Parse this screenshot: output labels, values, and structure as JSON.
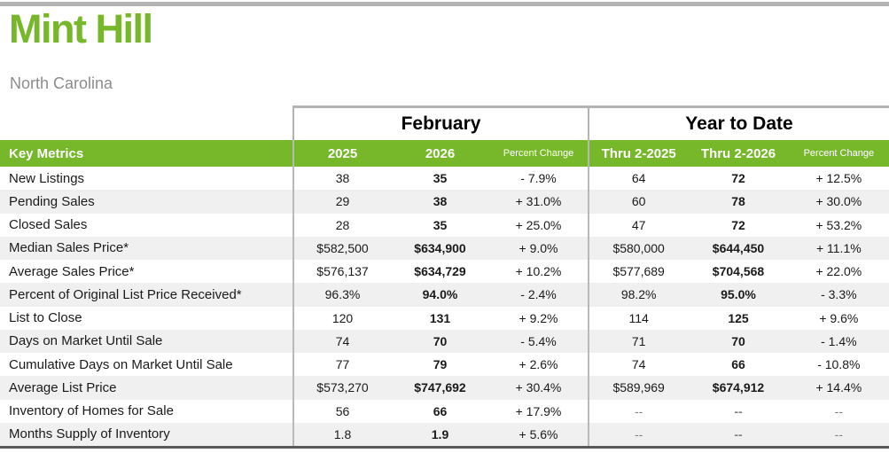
{
  "page": {
    "title": "Mint Hill",
    "subtitle": "North Carolina"
  },
  "table": {
    "key_metrics_label": "Key Metrics",
    "groups": [
      {
        "label": "February",
        "columns": [
          "2025",
          "2026",
          "Percent Change"
        ]
      },
      {
        "label": "Year to Date",
        "columns": [
          "Thru 2-2025",
          "Thru 2-2026",
          "Percent Change"
        ]
      }
    ],
    "rows": [
      {
        "metric": "New Listings",
        "feb_2025": "38",
        "feb_2026": "35",
        "feb_change": "- 7.9%",
        "ytd_2025": "64",
        "ytd_2026": "72",
        "ytd_change": "+ 12.5%"
      },
      {
        "metric": "Pending Sales",
        "feb_2025": "29",
        "feb_2026": "38",
        "feb_change": "+ 31.0%",
        "ytd_2025": "60",
        "ytd_2026": "78",
        "ytd_change": "+ 30.0%"
      },
      {
        "metric": "Closed Sales",
        "feb_2025": "28",
        "feb_2026": "35",
        "feb_change": "+ 25.0%",
        "ytd_2025": "47",
        "ytd_2026": "72",
        "ytd_change": "+ 53.2%"
      },
      {
        "metric": "Median Sales Price*",
        "feb_2025": "$582,500",
        "feb_2026": "$634,900",
        "feb_change": "+ 9.0%",
        "ytd_2025": "$580,000",
        "ytd_2026": "$644,450",
        "ytd_change": "+ 11.1%"
      },
      {
        "metric": "Average Sales Price*",
        "feb_2025": "$576,137",
        "feb_2026": "$634,729",
        "feb_change": "+ 10.2%",
        "ytd_2025": "$577,689",
        "ytd_2026": "$704,568",
        "ytd_change": "+ 22.0%"
      },
      {
        "metric": "Percent of Original List Price Received*",
        "feb_2025": "96.3%",
        "feb_2026": "94.0%",
        "feb_change": "- 2.4%",
        "ytd_2025": "98.2%",
        "ytd_2026": "95.0%",
        "ytd_change": "- 3.3%"
      },
      {
        "metric": "List to Close",
        "feb_2025": "120",
        "feb_2026": "131",
        "feb_change": "+ 9.2%",
        "ytd_2025": "114",
        "ytd_2026": "125",
        "ytd_change": "+ 9.6%"
      },
      {
        "metric": "Days on Market Until Sale",
        "feb_2025": "74",
        "feb_2026": "70",
        "feb_change": "- 5.4%",
        "ytd_2025": "71",
        "ytd_2026": "70",
        "ytd_change": "- 1.4%"
      },
      {
        "metric": "Cumulative Days on Market Until Sale",
        "feb_2025": "77",
        "feb_2026": "79",
        "feb_change": "+ 2.6%",
        "ytd_2025": "74",
        "ytd_2026": "66",
        "ytd_change": "- 10.8%"
      },
      {
        "metric": "Average List Price",
        "feb_2025": "$573,270",
        "feb_2026": "$747,692",
        "feb_change": "+ 30.4%",
        "ytd_2025": "$589,969",
        "ytd_2026": "$674,912",
        "ytd_change": "+ 14.4%"
      },
      {
        "metric": "Inventory of Homes for Sale",
        "feb_2025": "56",
        "feb_2026": "66",
        "feb_change": "+ 17.9%",
        "ytd_2025": "--",
        "ytd_2026": "--",
        "ytd_change": "--"
      },
      {
        "metric": "Months Supply of Inventory",
        "feb_2025": "1.8",
        "feb_2026": "1.9",
        "feb_change": "+ 5.6%",
        "ytd_2025": "--",
        "ytd_2026": "--",
        "ytd_change": "--"
      }
    ]
  },
  "colors": {
    "accent_green": "#76b82a",
    "subtitle_gray": "#8c8c8c",
    "row_alt_gray": "#f0f0f0",
    "divider_gray": "#b3b3b3",
    "bottom_border": "#5a5a5a",
    "na_gray": "#7f7f7f"
  }
}
